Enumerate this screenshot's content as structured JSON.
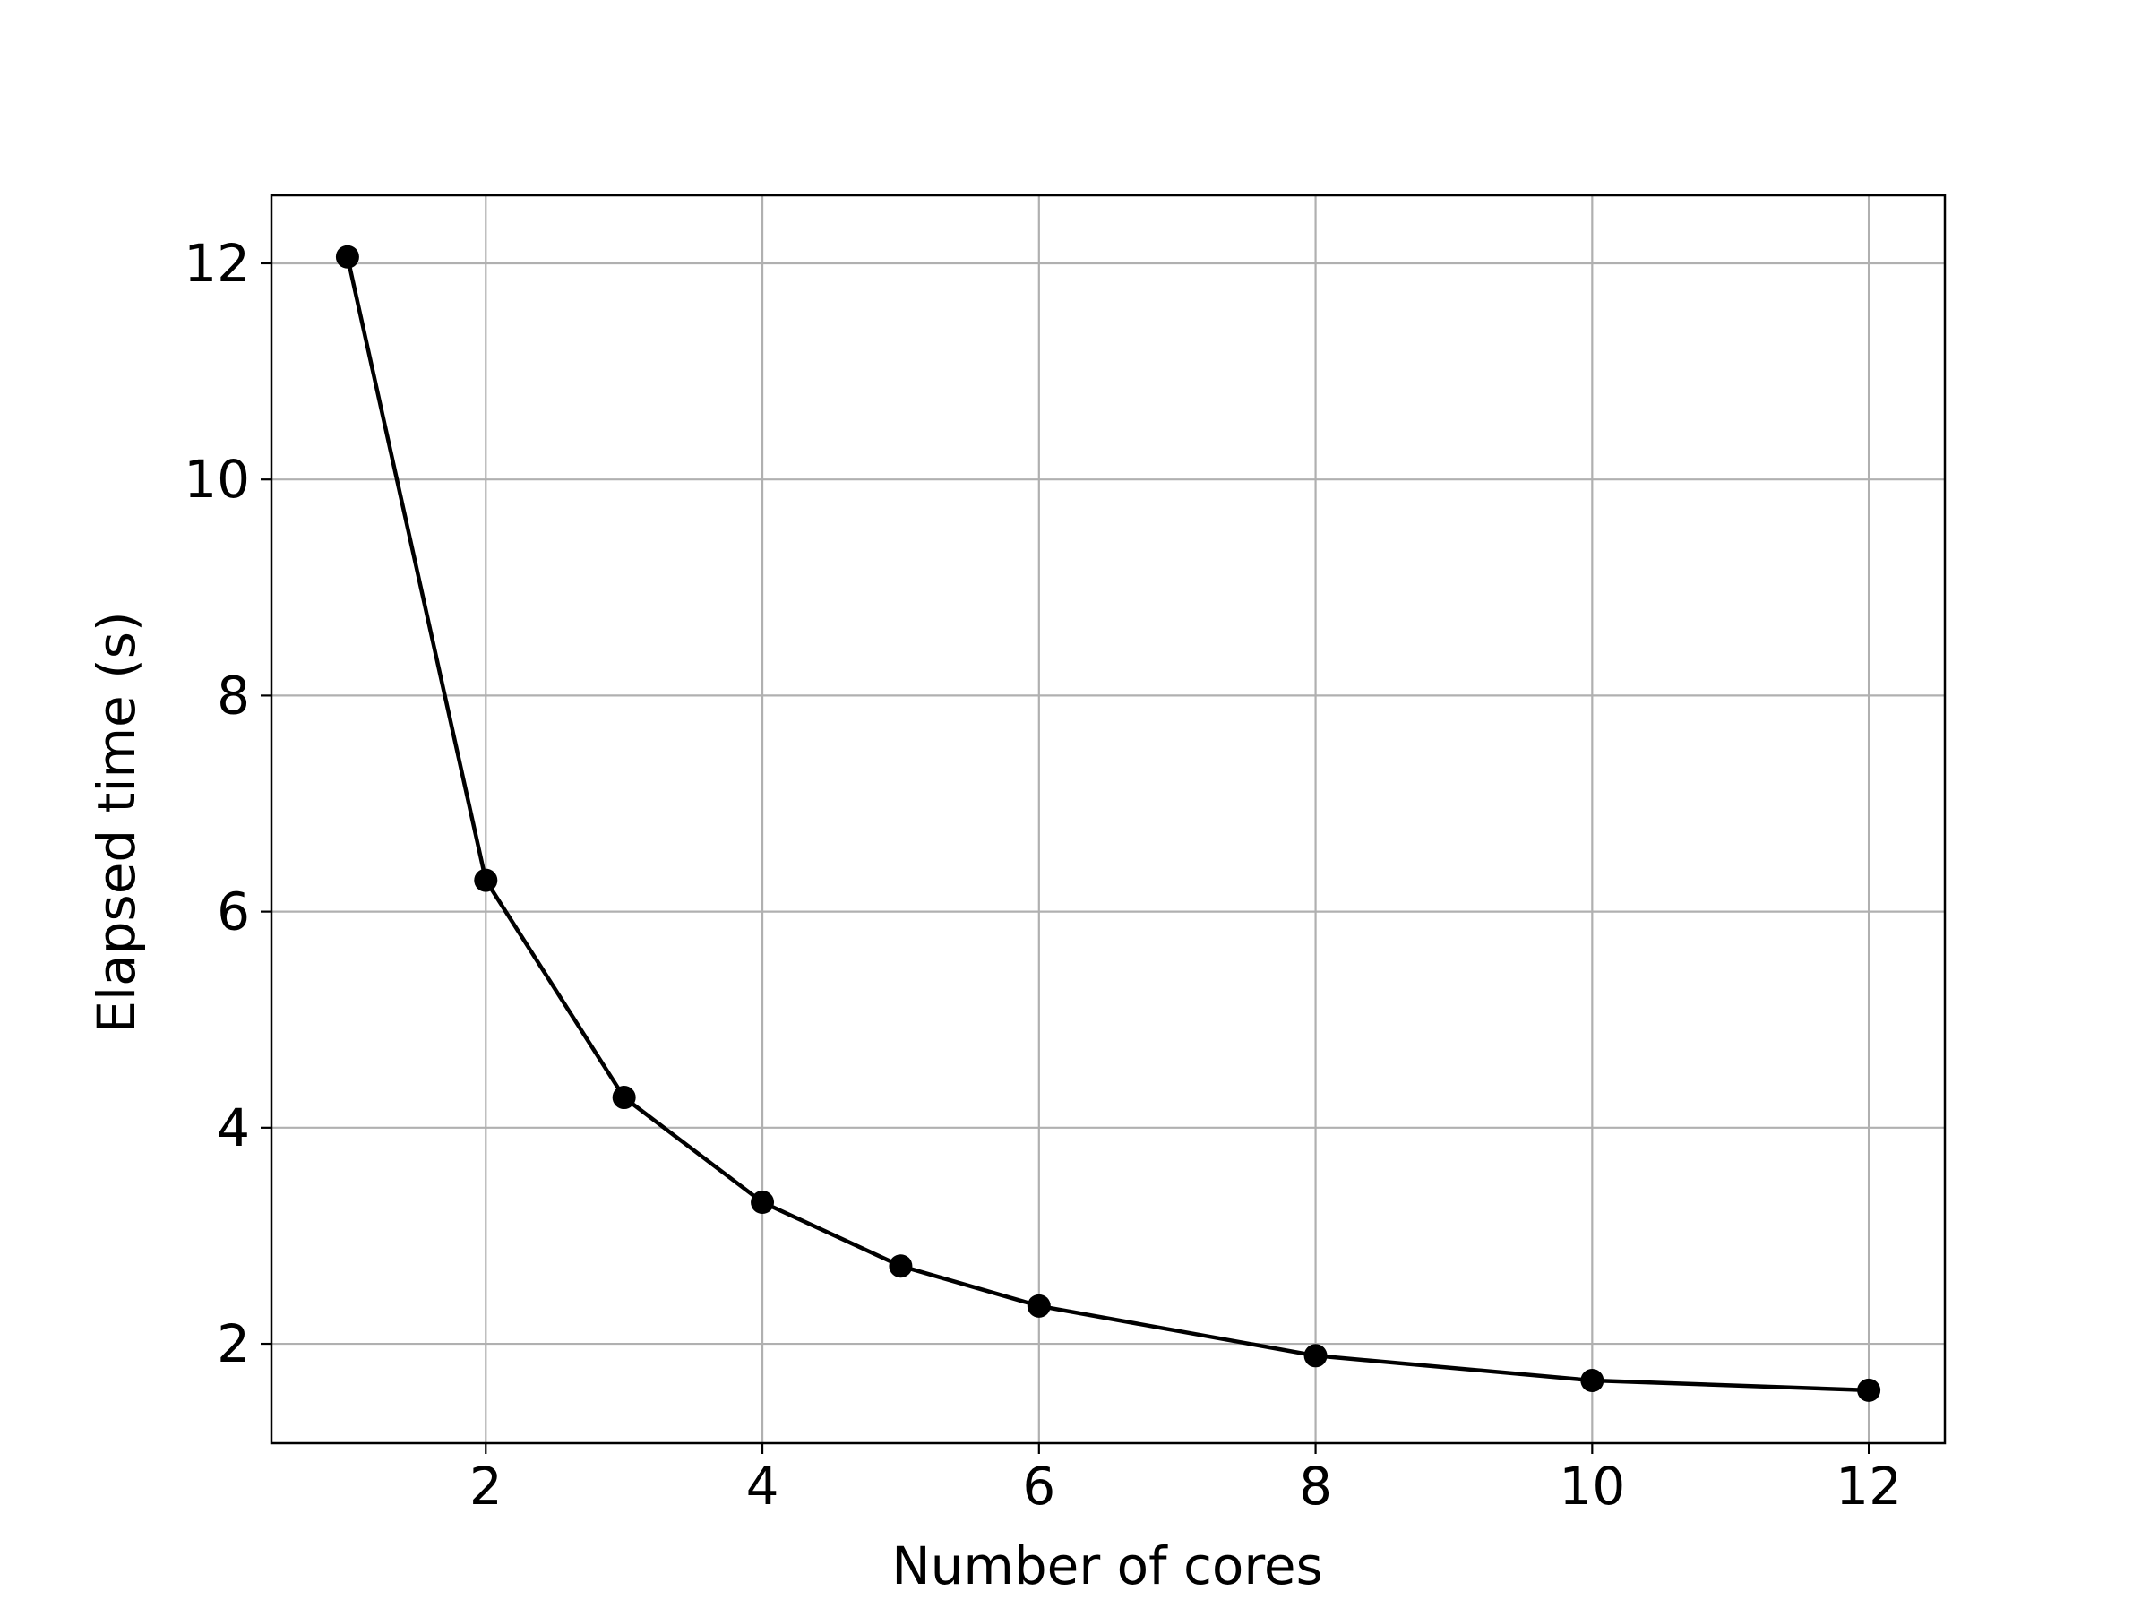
{
  "chart_data": {
    "type": "line",
    "title": "",
    "xlabel": "Number of cores",
    "ylabel": "Elapsed time (s)",
    "xlim": [
      0.45,
      12.55
    ],
    "ylim": [
      1.08,
      12.63
    ],
    "xticks": [
      2,
      4,
      6,
      8,
      10,
      12
    ],
    "yticks": [
      2,
      4,
      6,
      8,
      10,
      12
    ],
    "grid": true,
    "legend": "none",
    "series": [
      {
        "color": "#000000",
        "marker": "circle",
        "x": [
          1,
          2,
          3,
          4,
          5,
          6,
          8,
          10,
          12
        ],
        "y": [
          12.06,
          6.29,
          4.28,
          3.31,
          2.72,
          2.35,
          1.89,
          1.66,
          1.57
        ]
      }
    ]
  }
}
